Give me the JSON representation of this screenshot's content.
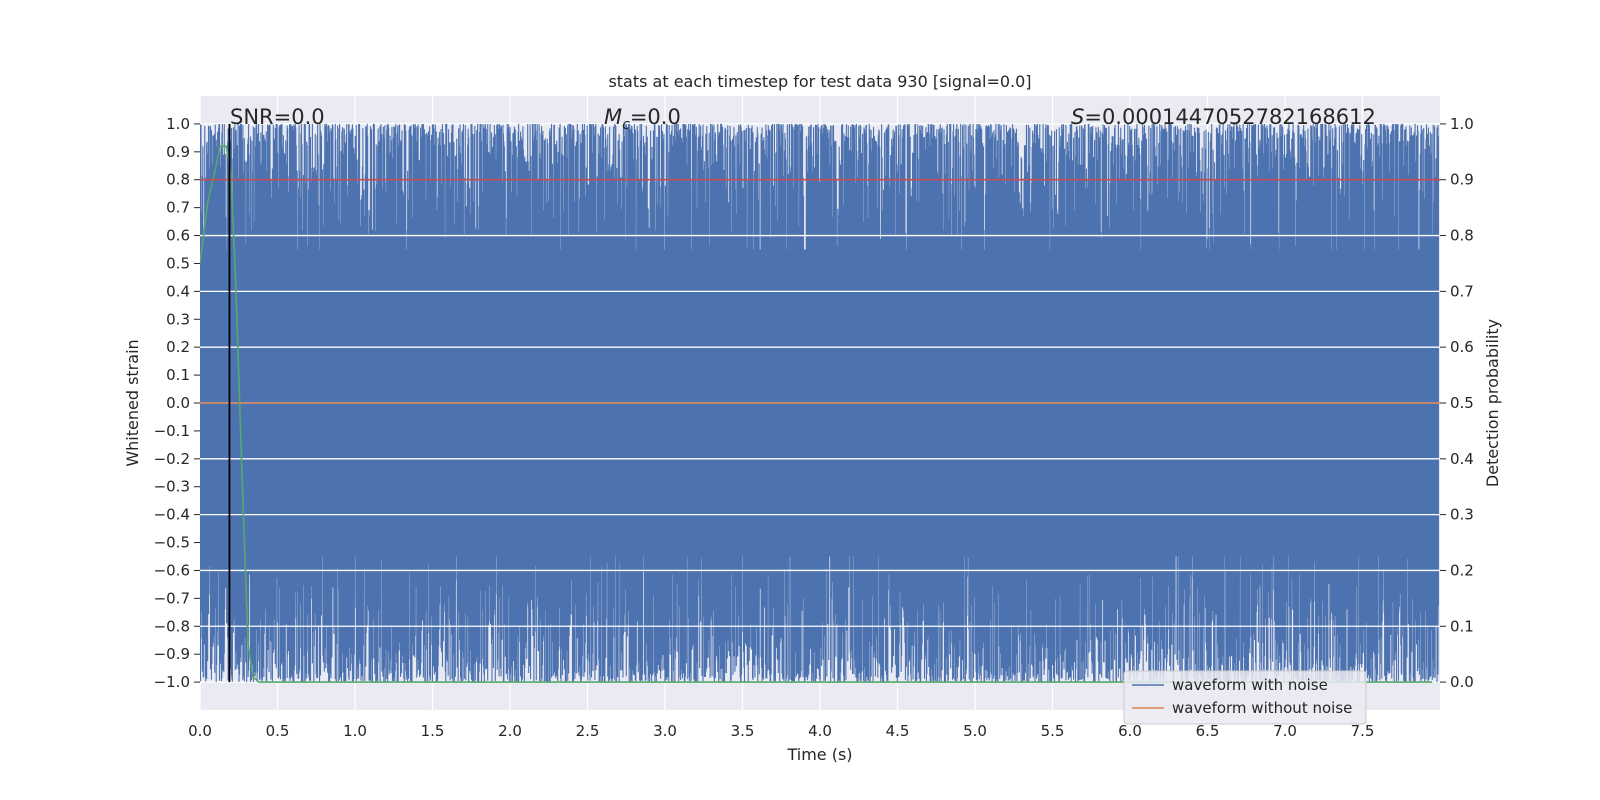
{
  "chart_data": {
    "type": "line",
    "title": "stats at each timestep for test data 930 [signal=0.0]",
    "xlabel": "Time (s)",
    "ylabel_left": "Whitened strain",
    "ylabel_right": "Detection probability",
    "xlim": [
      0.0,
      8.0
    ],
    "ylim_left": [
      -1.1,
      1.1
    ],
    "ylim_right": [
      -0.05,
      1.05
    ],
    "x_ticks": [
      "0.0",
      "0.5",
      "1.0",
      "1.5",
      "2.0",
      "2.5",
      "3.0",
      "3.5",
      "4.0",
      "4.5",
      "5.0",
      "5.5",
      "6.0",
      "6.5",
      "7.0",
      "7.5"
    ],
    "y_ticks_left": [
      "1.0",
      "0.9",
      "0.8",
      "0.7",
      "0.6",
      "0.5",
      "0.4",
      "0.3",
      "0.2",
      "0.1",
      "0.0",
      "−0.1",
      "−0.2",
      "−0.3",
      "−0.4",
      "−0.5",
      "−0.6",
      "−0.7",
      "−0.8",
      "−0.9",
      "−1.0"
    ],
    "y_ticks_right": [
      "1.0",
      "0.9",
      "0.8",
      "0.7",
      "0.6",
      "0.5",
      "0.4",
      "0.3",
      "0.2",
      "0.1",
      "0.0"
    ],
    "grid": true,
    "annotations": {
      "snr": "SNR=0.0",
      "mc_symbol": "M",
      "mc_sub": "c",
      "mc_value": "=0.0",
      "s_symbol": "S",
      "s_value": "=0.0001447052782168612"
    },
    "vertical_marker_x": 0.19,
    "threshold_probability": 0.9,
    "legend": {
      "placement": "lower-right",
      "entries": [
        "waveform with noise",
        "waveform without noise"
      ]
    },
    "series": [
      {
        "name": "waveform with noise",
        "axis": "left",
        "color": "#4c72b0",
        "style": "dense noise spanning roughly -1.0 to 1.0 across the full time range"
      },
      {
        "name": "waveform without noise",
        "axis": "left",
        "color": "#dd8452",
        "x": [
          0.0,
          8.0
        ],
        "values": [
          0.0,
          0.0
        ]
      },
      {
        "axis": "right",
        "color": "#55a868",
        "x": [
          0.0,
          0.05,
          0.1,
          0.13,
          0.17,
          0.2,
          0.23,
          0.27,
          0.31,
          0.34,
          0.38,
          0.42,
          1.0,
          2.0,
          3.0,
          4.0,
          5.0,
          6.0,
          7.0,
          7.95
        ],
        "values": [
          0.75,
          0.86,
          0.92,
          0.96,
          0.96,
          0.91,
          0.72,
          0.38,
          0.07,
          0.01,
          0.0,
          0.0,
          0.0,
          0.0,
          0.0,
          0.0,
          0.0,
          0.0,
          0.0,
          0.0
        ]
      },
      {
        "axis": "right",
        "color": "#c44e52",
        "x": [
          0.0,
          8.0
        ],
        "values": [
          0.9,
          0.9
        ]
      }
    ]
  }
}
